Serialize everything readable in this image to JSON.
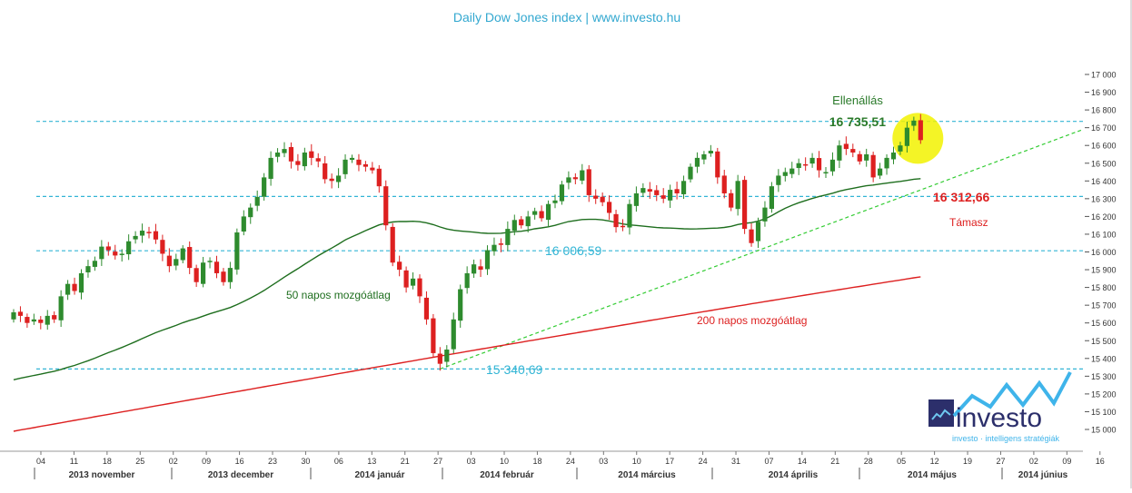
{
  "chart_data": {
    "type": "candlestick",
    "title": "Daily Dow Jones index | www.investo.hu",
    "ylim": [
      14900,
      17100
    ],
    "y_ticks": [
      "17 000",
      "16 900",
      "16 800",
      "16 700",
      "16 600",
      "16 500",
      "16 400",
      "16 300",
      "16 200",
      "16 100",
      "16 000",
      "15 900",
      "15 800",
      "15 700",
      "15 600",
      "15 500",
      "15 400",
      "15 300",
      "15 200",
      "15 100",
      "15 000"
    ],
    "x_day_ticks": [
      "04",
      "11",
      "18",
      "25",
      "02",
      "09",
      "16",
      "23",
      "30",
      "06",
      "13",
      "21",
      "27",
      "03",
      "10",
      "18",
      "24",
      "03",
      "10",
      "17",
      "24",
      "31",
      "07",
      "14",
      "21",
      "28",
      "05",
      "12",
      "19",
      "27",
      "02",
      "09",
      "16"
    ],
    "month_labels": [
      "2013 november",
      "2013 december",
      "2014 január",
      "2014 február",
      "2014 március",
      "2014 április",
      "2014 május",
      "2014 június"
    ],
    "close_series": [
      15660,
      15640,
      15600,
      15620,
      15600,
      15640,
      15620,
      15750,
      15820,
      15780,
      15880,
      15920,
      15950,
      16030,
      16010,
      15980,
      15990,
      16060,
      16090,
      16120,
      16110,
      16070,
      15990,
      15920,
      15960,
      16020,
      15910,
      15830,
      15940,
      15950,
      15880,
      15830,
      15910,
      16110,
      16200,
      16250,
      16310,
      16420,
      16530,
      16560,
      16580,
      16510,
      16490,
      16560,
      16530,
      16510,
      16410,
      16400,
      16430,
      16520,
      16530,
      16490,
      16480,
      16460,
      16370,
      16150,
      15940,
      15900,
      15800,
      15850,
      15750,
      15620,
      15430,
      15370,
      15450,
      15620,
      15790,
      15880,
      15930,
      15900,
      16010,
      16040,
      16040,
      16130,
      16180,
      16150,
      16200,
      16230,
      16190,
      16270,
      16290,
      16380,
      16420,
      16410,
      16460,
      16320,
      16300,
      16280,
      16220,
      16140,
      16140,
      16270,
      16330,
      16360,
      16340,
      16320,
      16300,
      16350,
      16330,
      16400,
      16480,
      16530,
      16550,
      16570,
      16420,
      16330,
      16250,
      16400,
      16130,
      16050,
      16170,
      16250,
      16370,
      16430,
      16450,
      16470,
      16500,
      16490,
      16530,
      16460,
      16450,
      16520,
      16600,
      16580,
      16560,
      16510,
      16550,
      16420,
      16470,
      16530,
      16560,
      16600,
      16700,
      16740,
      16630
    ],
    "series": [
      {
        "name": "50 napos mozgóátlag",
        "start": 15190,
        "end": 16390
      },
      {
        "name": "200 napos mozgóátlag",
        "start": 14990,
        "end": 15860
      }
    ],
    "horizontal_levels": [
      {
        "value": 16735.51,
        "label": "16 735,51",
        "note": "Ellenállás"
      },
      {
        "value": 16312.66,
        "label": "16 312,66",
        "note": "Támasz"
      },
      {
        "value": 16006.59,
        "label": "16 006,59",
        "note": ""
      },
      {
        "value": 15340.69,
        "label": "15 340,69",
        "note": ""
      }
    ],
    "trendline": {
      "from": 15340.69,
      "to": 16690
    },
    "annotations": {
      "resistance_word": "Ellenállás",
      "support_word": "Támasz",
      "ma50_label": "50 napos mozgóátlag",
      "ma200_label": "200 napos mozgóátlag"
    },
    "logo": {
      "name": "investo",
      "tagline": "investo · intelligens stratégiák"
    },
    "colors": {
      "up": "#2e8b2e",
      "down": "#dd2020",
      "ma50": "#1e6e1e",
      "ma200": "#dd2020",
      "level_line": "#33b5d5",
      "title": "#33a8d0",
      "resistance_text": "#2a7a2a",
      "support_text": "#dd2020",
      "trendline": "#33cc33",
      "highlight": "#f2f200"
    }
  }
}
